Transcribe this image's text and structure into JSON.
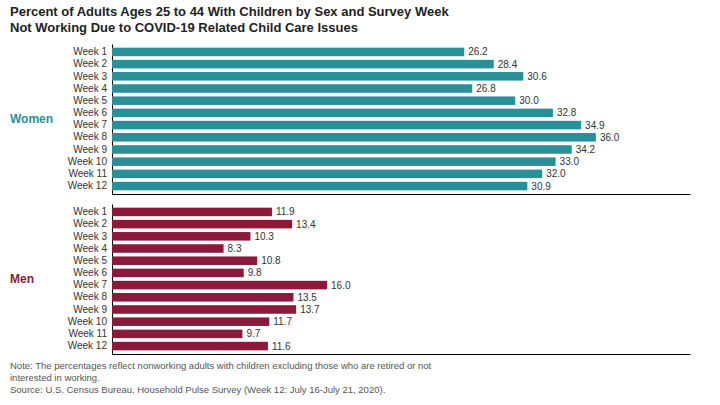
{
  "chart_data": [
    {
      "type": "bar",
      "orientation": "horizontal",
      "title": "Percent of Adults Ages 25 to 44 With Children by Sex and Survey Week",
      "subtitle": "Not Working Due to COVID-19 Related Child Care Issues",
      "categories": [
        "Week 1",
        "Week 2",
        "Week 3",
        "Week 4",
        "Week 5",
        "Week 6",
        "Week 7",
        "Week 8",
        "Week 9",
        "Week 10",
        "Week 11",
        "Week 12"
      ],
      "series": [
        {
          "name": "Women",
          "color": "#2a9098",
          "values": [
            26.2,
            28.4,
            30.6,
            26.8,
            30.0,
            32.8,
            34.9,
            36.0,
            34.2,
            33.0,
            32.0,
            30.9
          ],
          "value_labels": [
            "26.2",
            "28.4",
            "30.6",
            "26.8",
            "30.0",
            "32.8",
            "34.9",
            "36.0",
            "34.2",
            "33.0",
            "32.0",
            "30.9"
          ]
        }
      ],
      "xlim": [
        0,
        43
      ],
      "grid": false,
      "data_labels": true,
      "tick_labels": "y"
    },
    {
      "type": "bar",
      "orientation": "horizontal",
      "categories": [
        "Week 1",
        "Week 2",
        "Week 3",
        "Week 4",
        "Week 5",
        "Week 6",
        "Week 7",
        "Week 8",
        "Week 9",
        "Week 10",
        "Week 11",
        "Week 12"
      ],
      "series": [
        {
          "name": "Men",
          "color": "#8b1a3a",
          "values": [
            11.9,
            13.4,
            10.3,
            8.3,
            10.8,
            9.8,
            16.0,
            13.5,
            13.7,
            11.7,
            9.7,
            11.6
          ],
          "value_labels": [
            "11.9",
            "13.4",
            "10.3",
            "8.3",
            "10.8",
            "9.8",
            "16.0",
            "13.5",
            "13.7",
            "11.7",
            "9.7",
            "11.6"
          ]
        }
      ],
      "xlim": [
        0,
        43
      ],
      "grid": false,
      "data_labels": true,
      "tick_labels": "y",
      "annotations": [
        "Note: The percentages reflect nonworking adults with children excluding those who are retired or not\ninterested in working.\nSource: U.S. Census Bureau, Household Pulse Survey (Week 12: July 16-July 21, 2020)."
      ]
    }
  ]
}
